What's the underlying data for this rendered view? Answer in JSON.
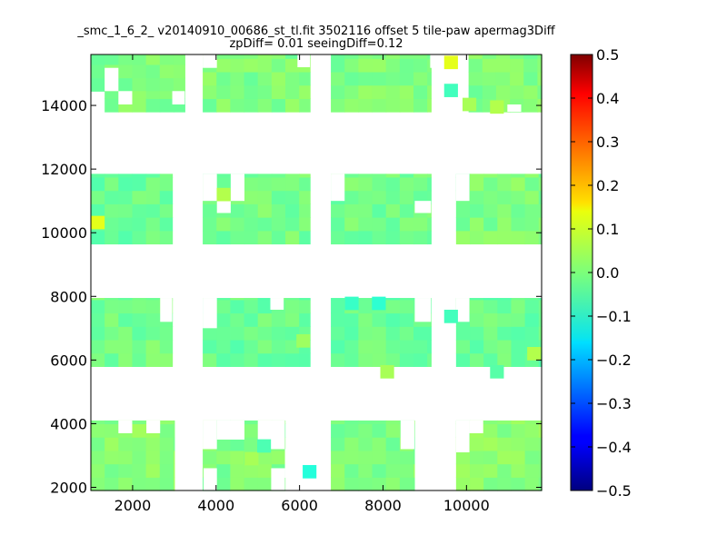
{
  "chart_data": {
    "type": "heatmap",
    "title": "_smc_1_6_2_ v20140910_00686_st_tl.fit 3502116 offset 5 tile-paw apermag3Diff",
    "subtitle": "zpDiff= 0.01 seeingDiff=0.12",
    "xlabel": "",
    "ylabel": "",
    "xlim": [
      1000,
      11800
    ],
    "ylim": [
      1900,
      15600
    ],
    "xticks": [
      "2000",
      "4000",
      "6000",
      "8000",
      "10000"
    ],
    "yticks": [
      "2000",
      "4000",
      "6000",
      "8000",
      "10000",
      "12000",
      "14000"
    ],
    "cell_size": [
      330,
      420
    ],
    "colormap": "jet",
    "colorbar": {
      "range": [
        -0.5,
        0.5
      ],
      "ticks": [
        "0.5",
        "0.4",
        "0.3",
        "0.2",
        "0.1",
        "0.0",
        "−0.1",
        "−0.2",
        "−0.3",
        "−0.4",
        "−0.5"
      ]
    },
    "blocks": [
      {
        "x": [
          1000,
          3250
        ],
        "y": [
          15600,
          14450
        ],
        "value": 0.0
      },
      {
        "x": [
          1330,
          3250
        ],
        "y": [
          14450,
          13800
        ],
        "value": 0.0
      },
      {
        "x": [
          3680,
          6250
        ],
        "y": [
          15600,
          13800
        ],
        "value": 0.0
      },
      {
        "x": [
          6750,
          9150
        ],
        "y": [
          15600,
          13800
        ],
        "value": 0.0
      },
      {
        "x": [
          10050,
          11800
        ],
        "y": [
          15600,
          13800
        ],
        "value": 0.0
      },
      {
        "x": [
          1000,
          2950
        ],
        "y": [
          11850,
          9650
        ],
        "value": -0.02
      },
      {
        "x": [
          3680,
          6250
        ],
        "y": [
          11850,
          9650
        ],
        "value": -0.01
      },
      {
        "x": [
          6750,
          9150
        ],
        "y": [
          11850,
          9650
        ],
        "value": -0.01
      },
      {
        "x": [
          9750,
          11800
        ],
        "y": [
          11850,
          9650
        ],
        "value": 0.0
      },
      {
        "x": [
          1000,
          2950
        ],
        "y": [
          7950,
          5800
        ],
        "value": -0.01
      },
      {
        "x": [
          3680,
          6250
        ],
        "y": [
          7950,
          5800
        ],
        "value": -0.02
      },
      {
        "x": [
          6750,
          9150
        ],
        "y": [
          7950,
          5800
        ],
        "value": -0.02
      },
      {
        "x": [
          9750,
          11800
        ],
        "y": [
          7950,
          5800
        ],
        "value": -0.02
      },
      {
        "x": [
          1000,
          3000
        ],
        "y": [
          4100,
          1900
        ],
        "value": 0.01
      },
      {
        "x": [
          3680,
          5650
        ],
        "y": [
          4100,
          1900
        ],
        "value": 0.0
      },
      {
        "x": [
          6750,
          8750
        ],
        "y": [
          4100,
          1900
        ],
        "value": 0.0
      },
      {
        "x": [
          9750,
          11800
        ],
        "y": [
          4100,
          1900
        ],
        "value": 0.01
      }
    ],
    "holes": [
      {
        "x": [
          1330,
          1660
        ],
        "y": [
          15180,
          14450
        ]
      },
      {
        "x": [
          1660,
          1990
        ],
        "y": [
          14450,
          14030
        ]
      },
      {
        "x": [
          2950,
          3250
        ],
        "y": [
          14450,
          14030
        ]
      },
      {
        "x": [
          5950,
          6250
        ],
        "y": [
          15600,
          15200
        ]
      },
      {
        "x": [
          3680,
          4020
        ],
        "y": [
          15600,
          15180
        ]
      },
      {
        "x": [
          9130,
          9460
        ],
        "y": [
          15600,
          15180
        ]
      },
      {
        "x": [
          10980,
          11310
        ],
        "y": [
          14030,
          13800
        ]
      },
      {
        "x": [
          3680,
          4020
        ],
        "y": [
          11850,
          11000
        ]
      },
      {
        "x": [
          4350,
          4680
        ],
        "y": [
          11850,
          11000
        ]
      },
      {
        "x": [
          4020,
          4350
        ],
        "y": [
          11000,
          10620
        ]
      },
      {
        "x": [
          6750,
          7080
        ],
        "y": [
          11850,
          11000
        ]
      },
      {
        "x": [
          8760,
          9150
        ],
        "y": [
          11000,
          10620
        ]
      },
      {
        "x": [
          9750,
          10070
        ],
        "y": [
          11850,
          11000
        ]
      },
      {
        "x": [
          3680,
          4020
        ],
        "y": [
          7950,
          7000
        ]
      },
      {
        "x": [
          5300,
          5620
        ],
        "y": [
          7950,
          7580
        ]
      },
      {
        "x": [
          2660,
          2950
        ],
        "y": [
          7950,
          7200
        ]
      },
      {
        "x": [
          8760,
          9150
        ],
        "y": [
          7950,
          7200
        ]
      },
      {
        "x": [
          9750,
          10070
        ],
        "y": [
          7950,
          7200
        ]
      },
      {
        "x": [
          3680,
          4020
        ],
        "y": [
          4100,
          3200
        ]
      },
      {
        "x": [
          4020,
          4680
        ],
        "y": [
          4100,
          3500
        ]
      },
      {
        "x": [
          5000,
          5650
        ],
        "y": [
          4100,
          3200
        ]
      },
      {
        "x": [
          1660,
          1990
        ],
        "y": [
          4100,
          3700
        ]
      },
      {
        "x": [
          2330,
          2660
        ],
        "y": [
          4100,
          3700
        ]
      },
      {
        "x": [
          9750,
          10070
        ],
        "y": [
          4100,
          3100
        ]
      },
      {
        "x": [
          10070,
          10400
        ],
        "y": [
          4100,
          3700
        ]
      },
      {
        "x": [
          8420,
          8750
        ],
        "y": [
          4100,
          3200
        ]
      },
      {
        "x": [
          3700,
          4020
        ],
        "y": [
          2600,
          1900
        ]
      },
      {
        "x": [
          5320,
          5650
        ],
        "y": [
          2600,
          1900
        ]
      },
      {
        "x": [
          5650,
          5990
        ],
        "y": [
          3200,
          2300
        ]
      }
    ],
    "outliers": [
      {
        "x": 9630,
        "y": 15350,
        "value": 0.1
      },
      {
        "x": 1165,
        "y": 10320,
        "value": 0.1
      },
      {
        "x": 6240,
        "y": 2490,
        "value": -0.09
      },
      {
        "x": 4180,
        "y": 11200,
        "value": 0.05
      },
      {
        "x": 8100,
        "y": 5630,
        "value": 0.04
      },
      {
        "x": 10730,
        "y": 5630,
        "value": -0.04
      },
      {
        "x": 9630,
        "y": 14470,
        "value": -0.06
      },
      {
        "x": 7900,
        "y": 7780,
        "value": -0.08
      },
      {
        "x": 7250,
        "y": 7780,
        "value": -0.07
      },
      {
        "x": 9630,
        "y": 7370,
        "value": -0.06
      },
      {
        "x": 6090,
        "y": 6600,
        "value": 0.03
      },
      {
        "x": 10070,
        "y": 14030,
        "value": 0.04
      },
      {
        "x": 11620,
        "y": 6200,
        "value": 0.05
      },
      {
        "x": 10730,
        "y": 13950,
        "value": 0.05
      },
      {
        "x": 4850,
        "y": 2900,
        "value": 0.04
      },
      {
        "x": 5150,
        "y": 3300,
        "value": -0.05
      }
    ]
  }
}
